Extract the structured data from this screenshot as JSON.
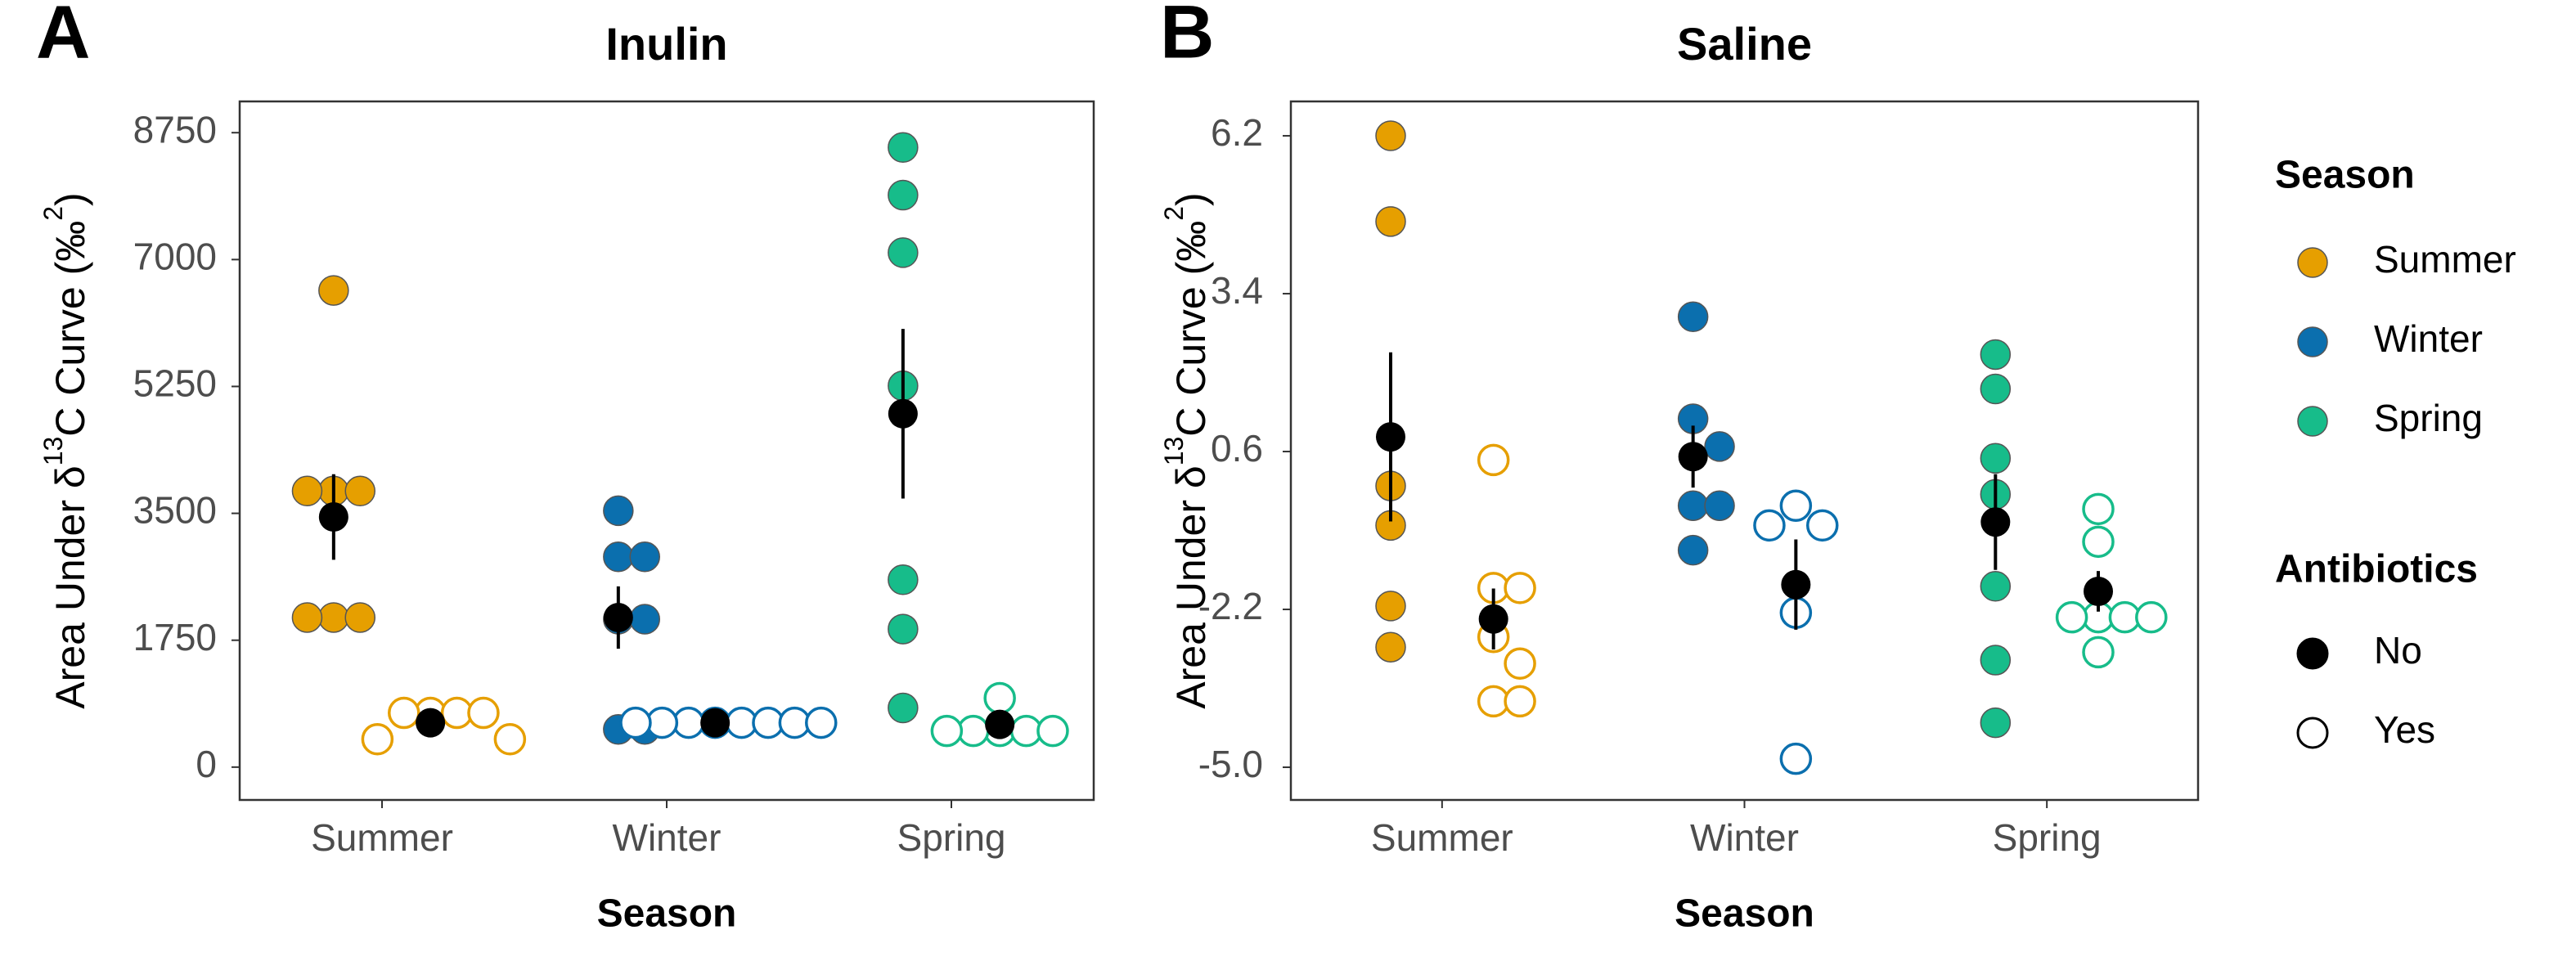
{
  "chart_data": [
    {
      "type": "dot",
      "panel_label": "A",
      "title": "Inulin",
      "xlabel": "Season",
      "ylabel_parts": [
        "Area Under  δ",
        "13",
        "C  Curve (‰",
        "2",
        ")"
      ],
      "categories": [
        "Summer",
        "Winter",
        "Spring"
      ],
      "colors": [
        "#E69F00",
        "#0B6FAE",
        "#17BC8A"
      ],
      "ylim": [
        -453,
        9181
      ],
      "yticks": [
        0,
        1750,
        3500,
        5250,
        7000,
        8750
      ],
      "groups": [
        {
          "name": "No",
          "filled": true,
          "values": [
            [
              6574,
              3808,
              3808,
              3808,
              2063,
              2063,
              2063
            ],
            [
              3536,
              2900,
              2900,
              2040,
              2040,
              520,
              520
            ],
            [
              8546,
              7889,
              7095,
              5259,
              2584,
              1904,
              816
            ]
          ],
          "mean": [
            3450,
            2063,
            4874
          ],
          "error": [
            590,
            430,
            1170
          ]
        },
        {
          "name": "Yes",
          "filled": false,
          "values": [
            [
              748,
              748,
              748,
              748,
              385,
              385
            ],
            [
              612,
              612,
              612,
              612,
              612,
              612,
              612,
              612
            ],
            [
              952,
              499,
              499,
              499,
              499,
              499
            ]
          ],
          "mean": [
            612,
            612,
            589
          ],
          "error": [
            150,
            40,
            100
          ]
        }
      ]
    },
    {
      "type": "dot",
      "panel_label": "B",
      "title": "Saline",
      "xlabel": "Season",
      "ylabel_parts": [
        "Area Under  δ",
        "13",
        "C  Curve (‰",
        "2",
        ")"
      ],
      "categories": [
        "Summer",
        "Winter",
        "Spring"
      ],
      "colors": [
        "#E69F00",
        "#0B6FAE",
        "#17BC8A"
      ],
      "ylim": [
        -5.58,
        6.81
      ],
      "yticks": [
        {
          "value": -5,
          "label": "-5.0"
        },
        -2.2,
        0.6,
        3.4,
        6.2
      ],
      "groups": [
        {
          "name": "No",
          "filled": true,
          "values": [
            [
              6.2,
              4.68,
              -0.01,
              -0.71,
              -2.14,
              -2.87
            ],
            [
              2.99,
              1.18,
              0.69,
              -0.36,
              -0.36,
              -1.15
            ],
            [
              2.32,
              1.71,
              0.48,
              -0.16,
              -1.79,
              -3.1,
              -4.21
            ]
          ],
          "mean": [
            0.86,
            0.51,
            -0.65
          ],
          "error": [
            1.5,
            0.55,
            0.85
          ]
        },
        {
          "name": "Yes",
          "filled": false,
          "values": [
            [
              0.45,
              -1.82,
              -1.82,
              -2.69,
              -3.16,
              -3.83,
              -3.83
            ],
            [
              -0.36,
              -0.71,
              -0.71,
              -2.26,
              -4.85
            ],
            [
              -0.42,
              -1.0,
              -2.34,
              -2.34,
              -2.34,
              -2.34,
              -2.96
            ]
          ],
          "mean": [
            -2.37,
            -1.76,
            -1.88
          ],
          "error": [
            0.54,
            0.8,
            0.36
          ]
        }
      ]
    }
  ],
  "legend": {
    "color_title": "Season",
    "fill_title": "Antibiotics"
  }
}
